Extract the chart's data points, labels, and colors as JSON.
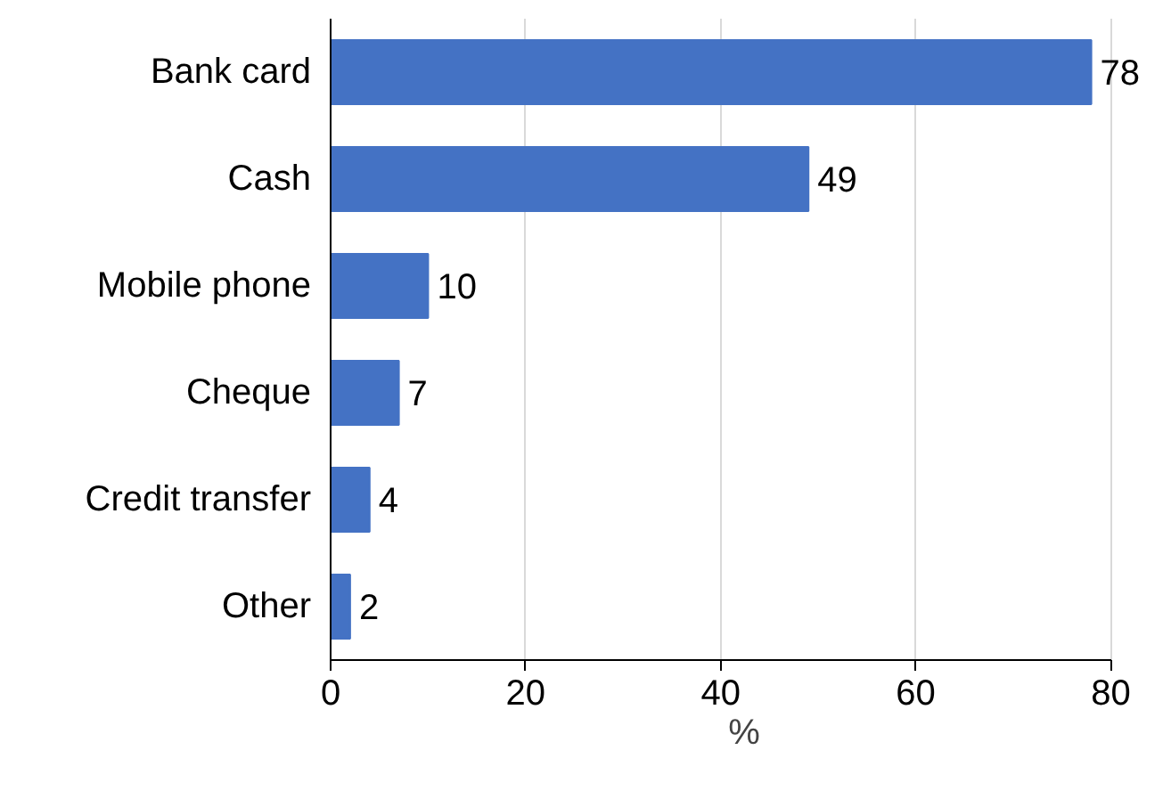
{
  "chart_data": {
    "type": "bar",
    "orientation": "horizontal",
    "categories": [
      "Bank card",
      "Cash",
      "Mobile phone",
      "Cheque",
      "Credit transfer",
      "Other"
    ],
    "values": [
      78,
      49,
      10,
      7,
      4,
      2
    ],
    "color": "#4472c4",
    "xlim": [
      0,
      80
    ],
    "xticks": [
      0,
      20,
      40,
      60,
      80
    ],
    "xlabel": "%",
    "grid": "x",
    "data_labels": true
  }
}
